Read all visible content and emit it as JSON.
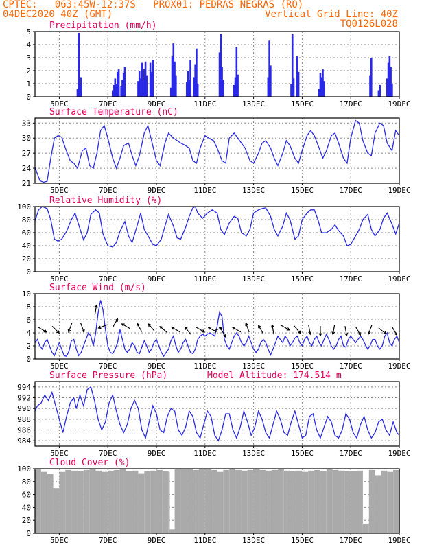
{
  "header": {
    "line1_left": "CPTEC:   063:45W-12:37S   PROX01: PEDRAS NEGRAS (RO)",
    "line2_left": "04DEC2020 40Z (GMT)",
    "line2_right": "Vertical Grid Line: 40Z",
    "line3_right": "TQ0126L028"
  },
  "colors": {
    "header": "#ff6600",
    "title": "#e0005a",
    "series": "#2929e6",
    "wind_arrow": "#000000",
    "cloud": "#aaaaaa",
    "grid": "#888888"
  },
  "x_axis": {
    "day_range": [
      4.0,
      19.0
    ],
    "tick_days": [
      5,
      7,
      9,
      11,
      13,
      15,
      17,
      19
    ],
    "tick_labels": [
      "5DEC",
      "7DEC",
      "9DEC",
      "11DEC",
      "13DEC",
      "15DEC",
      "17DEC",
      "19DEC"
    ]
  },
  "chart_data": [
    {
      "type": "bar",
      "title": "Precipitation (mm/h)",
      "ylim": [
        0,
        5
      ],
      "yticks": [
        0,
        1,
        2,
        3,
        4,
        5
      ],
      "x": [
        5.75,
        5.8,
        5.85,
        5.9,
        7.2,
        7.25,
        7.3,
        7.35,
        7.4,
        7.45,
        7.55,
        7.6,
        7.65,
        7.7,
        8.25,
        8.3,
        8.35,
        8.4,
        8.45,
        8.5,
        8.55,
        8.6,
        8.75,
        8.8,
        8.85,
        9.6,
        9.65,
        9.7,
        9.75,
        9.8,
        10.25,
        10.3,
        10.35,
        10.4,
        10.55,
        10.6,
        10.65,
        10.7,
        11.6,
        11.65,
        11.7,
        11.75,
        12.2,
        12.25,
        12.3,
        12.35,
        13.6,
        13.65,
        13.7,
        14.55,
        14.6,
        14.65,
        14.8,
        14.85,
        15.7,
        15.75,
        15.8,
        15.85,
        15.9,
        17.8,
        17.85,
        18.15,
        18.2,
        18.5,
        18.55,
        18.6,
        18.65,
        18.7
      ],
      "values": [
        0.6,
        4.9,
        0.9,
        1.5,
        0.5,
        0.9,
        1.4,
        1.0,
        1.9,
        2.1,
        0.8,
        1.3,
        1.8,
        2.3,
        1.2,
        2.0,
        1.4,
        2.6,
        1.3,
        2.1,
        2.7,
        1.6,
        2.6,
        1.9,
        2.8,
        0.7,
        3.1,
        4.1,
        2.7,
        1.6,
        1.1,
        2.0,
        1.3,
        2.8,
        1.5,
        2.5,
        3.7,
        1.0,
        3.4,
        4.8,
        2.3,
        1.3,
        0.9,
        1.5,
        3.8,
        1.7,
        1.5,
        4.3,
        2.4,
        1.0,
        4.8,
        1.4,
        3.1,
        1.9,
        0.6,
        1.8,
        1.5,
        2.1,
        1.2,
        1.6,
        3.0,
        0.5,
        0.9,
        1.4,
        2.6,
        3.1,
        2.3,
        1.0
      ]
    },
    {
      "type": "line",
      "title": "Surface Temperature (nC)",
      "ylim": [
        21,
        34
      ],
      "yticks": [
        21,
        24,
        27,
        30,
        33
      ],
      "x": [
        4.0,
        4.2,
        4.35,
        4.5,
        4.65,
        4.8,
        4.95,
        5.1,
        5.25,
        5.45,
        5.6,
        5.75,
        5.95,
        6.1,
        6.25,
        6.4,
        6.55,
        6.7,
        6.85,
        7.0,
        7.2,
        7.35,
        7.5,
        7.65,
        7.85,
        8.0,
        8.15,
        8.3,
        8.5,
        8.65,
        8.8,
        9.0,
        9.15,
        9.35,
        9.5,
        9.7,
        9.85,
        10.0,
        10.2,
        10.35,
        10.5,
        10.65,
        10.8,
        11.0,
        11.15,
        11.35,
        11.5,
        11.7,
        11.85,
        12.0,
        12.2,
        12.35,
        12.5,
        12.65,
        12.85,
        13.0,
        13.2,
        13.35,
        13.5,
        13.7,
        13.85,
        14.0,
        14.2,
        14.35,
        14.5,
        14.7,
        14.85,
        15.0,
        15.2,
        15.35,
        15.5,
        15.7,
        15.85,
        16.0,
        16.2,
        16.35,
        16.5,
        16.7,
        16.85,
        17.0,
        17.2,
        17.35,
        17.5,
        17.7,
        17.85,
        18.0,
        18.2,
        18.35,
        18.5,
        18.7,
        18.85,
        19.0
      ],
      "values": [
        24.2,
        21.5,
        21.2,
        21.4,
        26.0,
        30.0,
        30.5,
        30.2,
        28.0,
        25.5,
        25.0,
        24.0,
        27.5,
        28.0,
        24.5,
        24.0,
        27.0,
        31.5,
        32.5,
        30.0,
        26.0,
        24.0,
        26.0,
        28.5,
        29.0,
        26.5,
        24.5,
        26.5,
        31.0,
        32.5,
        29.5,
        25.5,
        24.5,
        29.0,
        31.0,
        30.0,
        29.5,
        29.0,
        28.5,
        28.0,
        25.5,
        25.0,
        28.0,
        30.5,
        30.0,
        29.5,
        28.0,
        25.5,
        25.0,
        30.0,
        31.0,
        30.0,
        29.0,
        28.0,
        25.5,
        25.0,
        27.0,
        29.0,
        29.5,
        28.0,
        26.0,
        24.5,
        27.0,
        29.5,
        28.5,
        26.0,
        25.0,
        27.5,
        30.5,
        31.5,
        30.5,
        28.0,
        26.0,
        27.5,
        30.5,
        31.0,
        29.0,
        26.0,
        25.0,
        30.0,
        33.5,
        33.0,
        29.5,
        27.0,
        26.5,
        31.0,
        33.0,
        32.5,
        29.0,
        27.5,
        31.5,
        30.5
      ]
    },
    {
      "type": "line",
      "title": "Relative Humidity (%)",
      "ylim": [
        0,
        100
      ],
      "yticks": [
        0,
        20,
        40,
        60,
        80,
        100
      ],
      "x": [
        4.0,
        4.15,
        4.3,
        4.5,
        4.65,
        4.8,
        4.95,
        5.1,
        5.3,
        5.5,
        5.65,
        5.8,
        6.0,
        6.15,
        6.3,
        6.5,
        6.65,
        6.8,
        7.0,
        7.2,
        7.35,
        7.5,
        7.7,
        7.85,
        8.0,
        8.2,
        8.35,
        8.5,
        8.7,
        8.85,
        9.0,
        9.2,
        9.35,
        9.5,
        9.7,
        9.85,
        10.0,
        10.2,
        10.35,
        10.5,
        10.6,
        10.7,
        10.9,
        11.1,
        11.3,
        11.5,
        11.65,
        11.8,
        12.0,
        12.2,
        12.35,
        12.5,
        12.7,
        12.85,
        13.0,
        13.2,
        13.35,
        13.5,
        13.7,
        13.85,
        14.0,
        14.2,
        14.35,
        14.5,
        14.7,
        14.85,
        15.0,
        15.2,
        15.35,
        15.5,
        15.65,
        15.8,
        16.0,
        16.2,
        16.35,
        16.5,
        16.7,
        16.85,
        17.0,
        17.2,
        17.35,
        17.5,
        17.7,
        17.85,
        18.0,
        18.2,
        18.35,
        18.5,
        18.7,
        18.85,
        19.0
      ],
      "values": [
        78,
        95,
        100,
        97,
        80,
        50,
        47,
        50,
        62,
        80,
        90,
        72,
        49,
        60,
        88,
        95,
        90,
        58,
        40,
        38,
        45,
        62,
        77,
        55,
        45,
        70,
        90,
        65,
        52,
        42,
        40,
        50,
        70,
        88,
        70,
        52,
        50,
        68,
        85,
        98,
        100,
        90,
        82,
        90,
        95,
        90,
        65,
        57,
        75,
        85,
        82,
        60,
        55,
        65,
        90,
        95,
        97,
        98,
        85,
        65,
        55,
        70,
        90,
        80,
        50,
        55,
        80,
        90,
        95,
        95,
        80,
        60,
        60,
        65,
        72,
        63,
        55,
        40,
        42,
        55,
        65,
        80,
        88,
        65,
        55,
        65,
        82,
        90,
        73,
        58,
        75
      ]
    },
    {
      "type": "line",
      "title": "Surface Wind (m/s)",
      "ylim": [
        0,
        10
      ],
      "yticks": [
        0,
        2,
        4,
        6,
        8,
        10
      ],
      "x": [
        4.0,
        4.1,
        4.2,
        4.3,
        4.4,
        4.5,
        4.6,
        4.7,
        4.8,
        4.9,
        5.0,
        5.1,
        5.2,
        5.3,
        5.4,
        5.5,
        5.6,
        5.7,
        5.8,
        5.9,
        6.0,
        6.1,
        6.2,
        6.3,
        6.4,
        6.5,
        6.6,
        6.7,
        6.8,
        6.9,
        7.0,
        7.1,
        7.2,
        7.3,
        7.4,
        7.5,
        7.6,
        7.7,
        7.8,
        7.9,
        8.0,
        8.1,
        8.2,
        8.3,
        8.4,
        8.5,
        8.6,
        8.7,
        8.8,
        8.9,
        9.0,
        9.1,
        9.2,
        9.3,
        9.4,
        9.5,
        9.6,
        9.7,
        9.8,
        9.9,
        10.0,
        10.1,
        10.2,
        10.3,
        10.4,
        10.5,
        10.6,
        10.7,
        10.8,
        10.9,
        11.0,
        11.1,
        11.2,
        11.3,
        11.4,
        11.5,
        11.6,
        11.7,
        11.8,
        11.9,
        12.0,
        12.1,
        12.2,
        12.3,
        12.4,
        12.5,
        12.6,
        12.7,
        12.8,
        12.9,
        13.0,
        13.1,
        13.2,
        13.3,
        13.4,
        13.5,
        13.6,
        13.7,
        13.8,
        13.9,
        14.0,
        14.1,
        14.2,
        14.3,
        14.4,
        14.5,
        14.6,
        14.7,
        14.8,
        14.9,
        15.0,
        15.1,
        15.2,
        15.3,
        15.4,
        15.5,
        15.6,
        15.7,
        15.8,
        15.9,
        16.0,
        16.1,
        16.2,
        16.3,
        16.4,
        16.5,
        16.6,
        16.7,
        16.8,
        16.9,
        17.0,
        17.1,
        17.2,
        17.3,
        17.4,
        17.5,
        17.6,
        17.7,
        17.8,
        17.9,
        18.0,
        18.1,
        18.2,
        18.3,
        18.4,
        18.5,
        18.6,
        18.7,
        18.8,
        18.9,
        19.0
      ],
      "values": [
        2.5,
        3.0,
        2.0,
        1.5,
        2.5,
        3.0,
        2.0,
        1.0,
        0.5,
        1.5,
        2.5,
        1.5,
        0.5,
        0.4,
        1.2,
        2.8,
        3.0,
        1.5,
        0.5,
        1.0,
        2.0,
        3.0,
        4.0,
        3.5,
        2.0,
        4.0,
        7.0,
        9.0,
        7.5,
        4.5,
        2.0,
        1.0,
        0.8,
        1.5,
        2.5,
        4.5,
        3.0,
        1.5,
        1.0,
        1.5,
        2.5,
        2.0,
        1.0,
        0.8,
        1.8,
        2.8,
        2.0,
        1.0,
        1.5,
        2.5,
        3.0,
        2.0,
        1.0,
        0.4,
        1.0,
        1.5,
        2.8,
        3.5,
        2.0,
        1.0,
        1.5,
        2.5,
        3.0,
        2.0,
        1.0,
        0.8,
        1.5,
        3.0,
        3.5,
        3.8,
        3.5,
        3.8,
        4.0,
        3.8,
        3.5,
        5.0,
        7.2,
        6.5,
        3.0,
        2.0,
        1.5,
        2.5,
        3.5,
        4.0,
        3.5,
        2.5,
        2.0,
        2.5,
        3.5,
        2.5,
        1.5,
        1.0,
        1.5,
        2.5,
        3.0,
        2.5,
        1.5,
        0.6,
        1.5,
        2.5,
        3.5,
        3.0,
        2.5,
        3.5,
        3.0,
        2.0,
        2.5,
        3.2,
        3.5,
        2.5,
        2.0,
        3.0,
        3.5,
        2.5,
        2.0,
        3.0,
        3.5,
        2.5,
        2.0,
        3.0,
        3.8,
        3.0,
        2.0,
        1.5,
        2.0,
        3.0,
        3.5,
        2.0,
        1.8,
        3.0,
        3.5,
        3.0,
        2.5,
        3.0,
        3.5,
        3.0,
        2.2,
        1.5,
        2.0,
        3.0,
        3.0,
        2.0,
        1.5,
        2.0,
        3.5,
        4.0,
        2.5,
        2.0,
        3.0,
        3.5,
        2.5
      ],
      "arrows_x": [
        4.3,
        4.85,
        5.45,
        5.95,
        6.5,
        6.8,
        7.3,
        7.75,
        8.3,
        8.8,
        9.3,
        9.8,
        10.3,
        10.8,
        11.3,
        11.5,
        11.75,
        12.3,
        12.75,
        13.3,
        13.8,
        14.3,
        14.8,
        15.3,
        15.75,
        16.3,
        16.8,
        17.3,
        17.8,
        18.3,
        18.8
      ],
      "arrows_dir_deg": [
        120,
        135,
        200,
        160,
        10,
        250,
        30,
        300,
        330,
        320,
        310,
        300,
        320,
        120,
        300,
        70,
        150,
        300,
        340,
        330,
        350,
        120,
        140,
        170,
        180,
        190,
        170,
        150,
        200,
        130,
        150
      ],
      "arrows_speed": [
        4.5,
        4.5,
        4.8,
        4.8,
        7.5,
        5.0,
        5.5,
        5.0,
        4.8,
        4.8,
        4.5,
        4.5,
        4.3,
        4.5,
        4.5,
        4.5,
        4.0,
        4.5,
        4.8,
        4.5,
        4.5,
        4.8,
        4.5,
        4.5,
        4.3,
        4.5,
        4.3,
        4.3,
        4.5,
        4.3,
        4.3
      ]
    },
    {
      "type": "line",
      "title": "Surface Pressure (hPa)",
      "annotation": "Model Altitude: 174.514 m",
      "ylim": [
        983,
        995
      ],
      "yticks": [
        984,
        986,
        988,
        990,
        992,
        994
      ],
      "x": [
        4.0,
        4.1,
        4.25,
        4.4,
        4.55,
        4.7,
        4.85,
        5.0,
        5.15,
        5.3,
        5.45,
        5.6,
        5.7,
        5.85,
        6.0,
        6.15,
        6.3,
        6.45,
        6.6,
        6.75,
        6.9,
        7.05,
        7.2,
        7.35,
        7.5,
        7.65,
        7.8,
        7.95,
        8.1,
        8.25,
        8.4,
        8.55,
        8.7,
        8.85,
        9.0,
        9.15,
        9.3,
        9.45,
        9.6,
        9.75,
        9.9,
        10.05,
        10.2,
        10.35,
        10.5,
        10.65,
        10.8,
        10.95,
        11.1,
        11.25,
        11.4,
        11.55,
        11.7,
        11.85,
        12.0,
        12.15,
        12.3,
        12.45,
        12.6,
        12.75,
        12.9,
        13.05,
        13.2,
        13.35,
        13.5,
        13.65,
        13.8,
        13.95,
        14.1,
        14.25,
        14.4,
        14.55,
        14.7,
        14.85,
        15.0,
        15.15,
        15.3,
        15.45,
        15.6,
        15.75,
        15.9,
        16.05,
        16.2,
        16.35,
        16.5,
        16.65,
        16.8,
        16.95,
        17.1,
        17.25,
        17.4,
        17.55,
        17.7,
        17.85,
        18.0,
        18.15,
        18.3,
        18.45,
        18.6,
        18.75,
        18.9,
        19.0
      ],
      "values": [
        989.5,
        990.5,
        991.0,
        992.5,
        991.5,
        993.0,
        990.5,
        988.0,
        985.5,
        988.5,
        991.0,
        992.0,
        990.0,
        992.5,
        990.5,
        993.5,
        994.0,
        991.5,
        988.0,
        986.0,
        987.5,
        991.0,
        992.5,
        989.5,
        987.0,
        985.5,
        987.0,
        990.0,
        991.5,
        990.0,
        986.0,
        984.5,
        987.5,
        990.5,
        989.0,
        986.0,
        985.5,
        988.5,
        990.0,
        989.5,
        986.0,
        985.0,
        986.5,
        989.5,
        988.5,
        985.5,
        984.5,
        987.0,
        989.5,
        988.5,
        985.0,
        984.0,
        986.0,
        989.0,
        989.0,
        986.0,
        984.5,
        986.5,
        989.5,
        987.5,
        985.0,
        986.5,
        989.5,
        988.0,
        985.5,
        984.5,
        987.0,
        989.5,
        988.0,
        985.5,
        985.0,
        987.5,
        989.5,
        987.0,
        984.5,
        985.0,
        988.5,
        989.0,
        986.0,
        984.5,
        986.5,
        988.5,
        987.5,
        985.0,
        984.5,
        986.0,
        989.0,
        988.0,
        985.5,
        984.5,
        987.0,
        988.5,
        986.0,
        984.5,
        985.5,
        987.5,
        988.0,
        986.0,
        985.0,
        987.5,
        985.5,
        985.0
      ]
    },
    {
      "type": "bar",
      "title": "Cloud Cover (%)",
      "ylim": [
        0,
        100
      ],
      "yticks": [
        0,
        20,
        40,
        60,
        80,
        100
      ],
      "x": [
        4.0,
        4.05,
        4.25,
        4.5,
        4.75,
        5.0,
        5.25,
        5.5,
        5.75,
        6.0,
        6.25,
        6.5,
        6.75,
        7.0,
        7.25,
        7.5,
        7.75,
        8.0,
        8.25,
        8.5,
        8.75,
        9.0,
        9.25,
        9.5,
        9.55,
        9.75,
        10.0,
        10.25,
        10.5,
        10.75,
        11.0,
        11.25,
        11.5,
        11.75,
        12.0,
        12.25,
        12.5,
        12.75,
        13.0,
        13.25,
        13.5,
        13.75,
        14.0,
        14.25,
        14.5,
        14.75,
        15.0,
        15.25,
        15.5,
        15.75,
        16.0,
        16.25,
        16.5,
        16.75,
        17.0,
        17.25,
        17.5,
        17.75,
        18.0,
        18.25,
        18.5,
        18.75,
        19.0
      ],
      "values": [
        98,
        100,
        95,
        92,
        70,
        95,
        98,
        97,
        96,
        98,
        99,
        97,
        95,
        97,
        98,
        99,
        96,
        97,
        93,
        96,
        97,
        98,
        96,
        95,
        6,
        99,
        100,
        99,
        98,
        99,
        99,
        98,
        95,
        98,
        99,
        98,
        97,
        98,
        99,
        98,
        97,
        98,
        99,
        97,
        96,
        97,
        95,
        97,
        98,
        96,
        99,
        98,
        97,
        96,
        96,
        97,
        15,
        98,
        90,
        97,
        95,
        98,
        99
      ]
    }
  ]
}
